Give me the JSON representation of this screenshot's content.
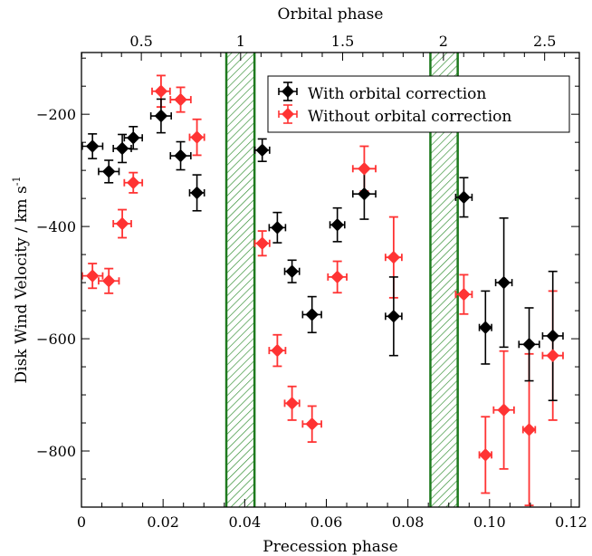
{
  "chart_data": {
    "type": "scatter",
    "xlabel": "Precession phase",
    "ylabel": "Disk Wind Velocity / km s",
    "ylabel_sup": "-1",
    "top_xlabel": "Orbital phase",
    "xlim": [
      0,
      0.122
    ],
    "ylim": [
      -900,
      -90
    ],
    "x_ticks": [
      0,
      0.02,
      0.04,
      0.06,
      0.08,
      0.1,
      0.12
    ],
    "x_tick_labels": [
      "0",
      "0.02",
      "0.04",
      "0.06",
      "0.08",
      "0.10",
      "0.12"
    ],
    "y_ticks": [
      -800,
      -600,
      -400,
      -200
    ],
    "y_tick_labels": [
      "-800",
      "-600",
      "-400",
      "-200"
    ],
    "top_ticks": [
      0.5,
      1,
      1.5,
      2,
      2.5
    ],
    "top_tick_labels": [
      "0.5",
      "1",
      "1.5",
      "2",
      "2.5"
    ],
    "top_tick_positions": [
      0.01467,
      0.039,
      0.064,
      0.0887,
      0.1135
    ],
    "shaded_regions": [
      [
        0.0355,
        0.0424
      ],
      [
        0.0855,
        0.0922
      ]
    ],
    "legend_position": "top-right",
    "series": [
      {
        "name": "With orbital correction",
        "color": "#000000",
        "marker": "diamond",
        "points": [
          {
            "x": 0.0027,
            "y": -257,
            "xerr": 0.0025,
            "yerr": 22
          },
          {
            "x": 0.0067,
            "y": -302,
            "xerr": 0.0025,
            "yerr": 20
          },
          {
            "x": 0.01,
            "y": -261,
            "xerr": 0.0022,
            "yerr": 25
          },
          {
            "x": 0.0127,
            "y": -242,
            "xerr": 0.0022,
            "yerr": 20
          },
          {
            "x": 0.0195,
            "y": -203,
            "xerr": 0.0025,
            "yerr": 30
          },
          {
            "x": 0.0243,
            "y": -274,
            "xerr": 0.0025,
            "yerr": 25
          },
          {
            "x": 0.0283,
            "y": -340,
            "xerr": 0.0018,
            "yerr": 32
          },
          {
            "x": 0.0443,
            "y": -264,
            "xerr": 0.0018,
            "yerr": 20
          },
          {
            "x": 0.048,
            "y": -402,
            "xerr": 0.002,
            "yerr": 27
          },
          {
            "x": 0.0516,
            "y": -480,
            "xerr": 0.0018,
            "yerr": 20
          },
          {
            "x": 0.0565,
            "y": -557,
            "xerr": 0.0023,
            "yerr": 32
          },
          {
            "x": 0.0627,
            "y": -397,
            "xerr": 0.0018,
            "yerr": 30
          },
          {
            "x": 0.0693,
            "y": -342,
            "xerr": 0.0028,
            "yerr": 45
          },
          {
            "x": 0.0765,
            "y": -560,
            "xerr": 0.002,
            "yerr": 70
          },
          {
            "x": 0.0937,
            "y": -348,
            "xerr": 0.002,
            "yerr": 35
          },
          {
            "x": 0.099,
            "y": -580,
            "xerr": 0.0015,
            "yerr": 65
          },
          {
            "x": 0.1035,
            "y": -500,
            "xerr": 0.002,
            "yerr": 115
          },
          {
            "x": 0.1097,
            "y": -610,
            "xerr": 0.0025,
            "yerr": 65
          },
          {
            "x": 0.1155,
            "y": -595,
            "xerr": 0.0025,
            "yerr": 115
          }
        ]
      },
      {
        "name": "Without orbital correction",
        "color": "#ff3333",
        "marker": "diamond",
        "points": [
          {
            "x": 0.0027,
            "y": -488,
            "xerr": 0.0025,
            "yerr": 22
          },
          {
            "x": 0.0067,
            "y": -497,
            "xerr": 0.0025,
            "yerr": 22
          },
          {
            "x": 0.01,
            "y": -395,
            "xerr": 0.0022,
            "yerr": 25
          },
          {
            "x": 0.0127,
            "y": -322,
            "xerr": 0.0022,
            "yerr": 18
          },
          {
            "x": 0.0195,
            "y": -159,
            "xerr": 0.0022,
            "yerr": 28
          },
          {
            "x": 0.0243,
            "y": -174,
            "xerr": 0.0025,
            "yerr": 22
          },
          {
            "x": 0.0283,
            "y": -241,
            "xerr": 0.0018,
            "yerr": 32
          },
          {
            "x": 0.0443,
            "y": -430,
            "xerr": 0.0018,
            "yerr": 22
          },
          {
            "x": 0.048,
            "y": -621,
            "xerr": 0.002,
            "yerr": 28
          },
          {
            "x": 0.0516,
            "y": -715,
            "xerr": 0.0018,
            "yerr": 30
          },
          {
            "x": 0.0565,
            "y": -752,
            "xerr": 0.0023,
            "yerr": 32
          },
          {
            "x": 0.0627,
            "y": -490,
            "xerr": 0.0023,
            "yerr": 28
          },
          {
            "x": 0.0693,
            "y": -297,
            "xerr": 0.0028,
            "yerr": 40
          },
          {
            "x": 0.0765,
            "y": -455,
            "xerr": 0.002,
            "yerr": 72
          },
          {
            "x": 0.0937,
            "y": -521,
            "xerr": 0.002,
            "yerr": 35
          },
          {
            "x": 0.099,
            "y": -807,
            "xerr": 0.0015,
            "yerr": 68
          },
          {
            "x": 0.1035,
            "y": -727,
            "xerr": 0.0025,
            "yerr": 105
          },
          {
            "x": 0.1097,
            "y": -762,
            "xerr": 0.0015,
            "yerr": 135
          },
          {
            "x": 0.1155,
            "y": -630,
            "xerr": 0.0025,
            "yerr": 115
          }
        ]
      }
    ]
  }
}
